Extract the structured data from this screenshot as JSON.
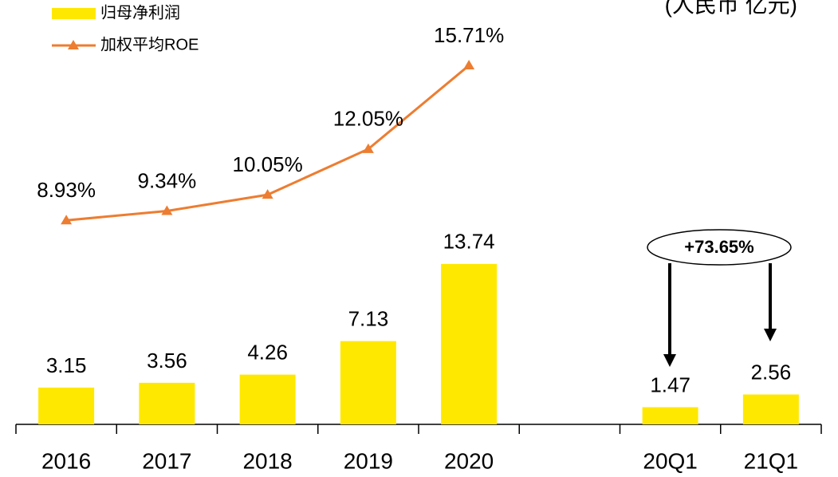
{
  "chart_data": {
    "type": "bar_line",
    "unit_label": "(人民币 亿元)",
    "annotation": "+73.65%",
    "categories": [
      "2016",
      "2017",
      "2018",
      "2019",
      "2020",
      null,
      "20Q1",
      "21Q1"
    ],
    "series": [
      {
        "name": "归母净利润",
        "type": "bar",
        "color": "#ffe800",
        "values": [
          3.15,
          3.56,
          4.26,
          7.13,
          13.74,
          null,
          1.47,
          2.56
        ]
      },
      {
        "name": "加权平均ROE",
        "type": "line",
        "axis": "y2",
        "color": "#ed7d31",
        "values": [
          8.93,
          9.34,
          10.05,
          12.05,
          15.71,
          null,
          null,
          null
        ],
        "value_labels": [
          "8.93%",
          "9.34%",
          "10.05%",
          "12.05%",
          "15.71%",
          null,
          null,
          null
        ]
      }
    ],
    "ylim": [
      0,
      36
    ],
    "y2lim": [
      0,
      18.4
    ]
  }
}
